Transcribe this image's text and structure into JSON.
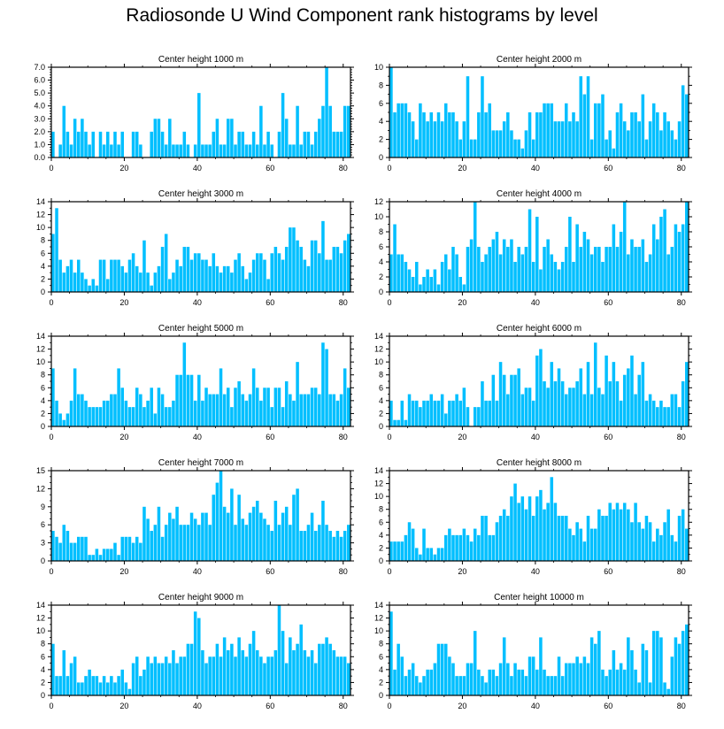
{
  "title": "Radiosonde U Wind Component rank histograms by level",
  "bar_color": "#00bfff",
  "axis_color": "#000000",
  "chart_data": [
    {
      "type": "bar",
      "title": "Center height 1000 m",
      "ylim": [
        0,
        7
      ],
      "yticks": [
        "0.0",
        "1.0",
        "2.0",
        "3.0",
        "4.0",
        "5.0",
        "6.0",
        "7.0"
      ],
      "xlim": [
        0,
        82
      ],
      "xticks": [
        "0",
        "20",
        "40",
        "60",
        "80"
      ],
      "values": [
        2,
        0,
        1,
        4,
        2,
        1,
        3,
        2,
        3,
        2,
        1,
        2,
        0,
        2,
        1,
        2,
        1,
        2,
        1,
        2,
        0,
        0,
        2,
        2,
        1,
        0,
        0,
        2,
        3,
        3,
        2,
        1,
        3,
        1,
        1,
        1,
        2,
        1,
        0,
        1,
        5,
        1,
        1,
        1,
        2,
        3,
        1,
        1,
        3,
        3,
        1,
        2,
        2,
        1,
        1,
        2,
        1,
        4,
        1,
        2,
        1,
        0,
        2,
        5,
        3,
        1,
        1,
        4,
        1,
        2,
        2,
        1,
        2,
        3,
        4,
        7,
        4,
        2,
        2,
        2,
        4,
        4
      ]
    },
    {
      "type": "bar",
      "title": "Center height 2000 m",
      "ylim": [
        0,
        10
      ],
      "yticks": [
        "0",
        "2",
        "4",
        "6",
        "8",
        "10"
      ],
      "xlim": [
        0,
        82
      ],
      "xticks": [
        "0",
        "20",
        "40",
        "60",
        "80"
      ],
      "values": [
        10,
        5,
        6,
        6,
        6,
        5,
        4,
        2,
        6,
        5,
        4,
        5,
        4,
        5,
        4,
        6,
        5,
        5,
        4,
        2,
        4,
        9,
        2,
        2,
        5,
        9,
        5,
        6,
        3,
        3,
        3,
        4,
        5,
        3,
        2,
        2,
        1,
        3,
        5,
        2,
        5,
        5,
        6,
        6,
        6,
        4,
        4,
        4,
        6,
        4,
        5,
        4,
        9,
        7,
        9,
        2,
        6,
        6,
        7,
        2,
        3,
        1,
        5,
        6,
        4,
        3,
        5,
        5,
        4,
        7,
        2,
        4,
        6,
        5,
        3,
        5,
        4,
        3,
        2,
        4,
        8,
        7
      ]
    },
    {
      "type": "bar",
      "title": "Center height 3000 m",
      "ylim": [
        0,
        14
      ],
      "yticks": [
        "0",
        "2",
        "4",
        "6",
        "8",
        "10",
        "12",
        "14"
      ],
      "xlim": [
        0,
        82
      ],
      "xticks": [
        "0",
        "20",
        "40",
        "60",
        "80"
      ],
      "values": [
        9,
        13,
        5,
        3,
        4,
        5,
        3,
        5,
        3,
        2,
        1,
        2,
        1,
        5,
        5,
        2,
        5,
        5,
        5,
        4,
        3,
        5,
        6,
        4,
        3,
        8,
        3,
        1,
        3,
        4,
        7,
        9,
        2,
        3,
        5,
        4,
        7,
        7,
        5,
        6,
        6,
        5,
        5,
        4,
        6,
        4,
        3,
        4,
        4,
        3,
        5,
        6,
        4,
        2,
        3,
        5,
        6,
        6,
        5,
        2,
        6,
        7,
        6,
        5,
        7,
        10,
        10,
        8,
        7,
        5,
        4,
        8,
        8,
        6,
        11,
        5,
        5,
        7,
        7,
        6,
        8,
        9
      ]
    },
    {
      "type": "bar",
      "title": "Center height 4000 m",
      "ylim": [
        0,
        12
      ],
      "yticks": [
        "0",
        "2",
        "4",
        "6",
        "8",
        "10",
        "12"
      ],
      "xlim": [
        0,
        82
      ],
      "xticks": [
        "0",
        "20",
        "40",
        "60",
        "80"
      ],
      "values": [
        5,
        9,
        5,
        5,
        4,
        3,
        2,
        4,
        1,
        2,
        3,
        2,
        3,
        1,
        4,
        5,
        3,
        6,
        5,
        2,
        1,
        6,
        7,
        12,
        6,
        4,
        5,
        6,
        7,
        8,
        5,
        7,
        6,
        7,
        4,
        6,
        5,
        6,
        11,
        4,
        10,
        3,
        6,
        7,
        5,
        4,
        3,
        4,
        6,
        10,
        4,
        9,
        6,
        8,
        7,
        5,
        6,
        6,
        4,
        6,
        6,
        9,
        6,
        8,
        12,
        5,
        7,
        6,
        6,
        7,
        4,
        5,
        9,
        7,
        10,
        11,
        5,
        6,
        9,
        8,
        9,
        12
      ]
    },
    {
      "type": "bar",
      "title": "Center height 5000 m",
      "ylim": [
        0,
        14
      ],
      "yticks": [
        "0",
        "2",
        "4",
        "6",
        "8",
        "10",
        "12",
        "14"
      ],
      "xlim": [
        0,
        82
      ],
      "xticks": [
        "0",
        "20",
        "40",
        "60",
        "80"
      ],
      "values": [
        9,
        4,
        2,
        1,
        2,
        4,
        9,
        5,
        5,
        4,
        3,
        3,
        3,
        3,
        4,
        4,
        5,
        5,
        9,
        6,
        4,
        3,
        3,
        6,
        5,
        3,
        4,
        6,
        2,
        6,
        5,
        3,
        3,
        4,
        8,
        8,
        13,
        8,
        8,
        4,
        8,
        4,
        6,
        5,
        5,
        5,
        9,
        5,
        6,
        3,
        6,
        7,
        5,
        4,
        5,
        9,
        6,
        4,
        6,
        6,
        3,
        6,
        6,
        3,
        7,
        5,
        4,
        10,
        5,
        5,
        5,
        6,
        6,
        5,
        13,
        12,
        5,
        5,
        4,
        5,
        9,
        6
      ]
    },
    {
      "type": "bar",
      "title": "Center height 6000 m",
      "ylim": [
        0,
        14
      ],
      "yticks": [
        "0",
        "2",
        "4",
        "6",
        "8",
        "10",
        "12",
        "14"
      ],
      "xlim": [
        0,
        82
      ],
      "xticks": [
        "0",
        "20",
        "40",
        "60",
        "80"
      ],
      "values": [
        4,
        1,
        1,
        4,
        1,
        5,
        4,
        4,
        3,
        4,
        4,
        5,
        4,
        4,
        5,
        2,
        4,
        4,
        5,
        4,
        6,
        3,
        0,
        3,
        3,
        7,
        4,
        4,
        8,
        4,
        10,
        8,
        5,
        8,
        8,
        9,
        5,
        6,
        6,
        4,
        11,
        12,
        7,
        6,
        10,
        7,
        9,
        7,
        5,
        6,
        6,
        7,
        9,
        5,
        10,
        5,
        13,
        6,
        5,
        11,
        7,
        10,
        7,
        4,
        8,
        9,
        11,
        5,
        8,
        10,
        4,
        5,
        4,
        3,
        4,
        3,
        3,
        5,
        5,
        3,
        7,
        10
      ]
    },
    {
      "type": "bar",
      "title": "Center height 7000 m",
      "ylim": [
        0,
        15
      ],
      "yticks": [
        "0",
        "3",
        "6",
        "9",
        "12",
        "15"
      ],
      "xlim": [
        0,
        82
      ],
      "xticks": [
        "0",
        "20",
        "40",
        "60",
        "80"
      ],
      "values": [
        5,
        4,
        3,
        6,
        5,
        3,
        3,
        4,
        4,
        4,
        1,
        1,
        2,
        1,
        2,
        2,
        2,
        3,
        1,
        4,
        4,
        4,
        3,
        4,
        3,
        9,
        7,
        5,
        6,
        9,
        4,
        6,
        8,
        7,
        9,
        6,
        6,
        6,
        8,
        7,
        6,
        8,
        8,
        6,
        11,
        13,
        15,
        9,
        8,
        12,
        6,
        11,
        7,
        6,
        8,
        9,
        10,
        8,
        7,
        6,
        5,
        10,
        6,
        8,
        9,
        6,
        11,
        12,
        5,
        5,
        6,
        8,
        5,
        6,
        10,
        6,
        5,
        4,
        5,
        4,
        5,
        6
      ]
    },
    {
      "type": "bar",
      "title": "Center height 8000 m",
      "ylim": [
        0,
        14
      ],
      "yticks": [
        "0",
        "2",
        "4",
        "6",
        "8",
        "10",
        "12",
        "14"
      ],
      "xlim": [
        0,
        82
      ],
      "xticks": [
        "0",
        "20",
        "40",
        "60",
        "80"
      ],
      "values": [
        3,
        3,
        3,
        3,
        4,
        6,
        5,
        2,
        1,
        5,
        2,
        2,
        1,
        2,
        2,
        4,
        5,
        4,
        4,
        4,
        5,
        4,
        3,
        5,
        4,
        7,
        7,
        4,
        4,
        6,
        7,
        8,
        7,
        10,
        12,
        9,
        10,
        8,
        10,
        7,
        10,
        11,
        8,
        9,
        13,
        9,
        7,
        7,
        7,
        5,
        4,
        6,
        5,
        3,
        7,
        5,
        5,
        8,
        7,
        7,
        9,
        8,
        9,
        8,
        9,
        8,
        6,
        9,
        6,
        5,
        7,
        6,
        3,
        5,
        4,
        6,
        8,
        4,
        3,
        7,
        8,
        5
      ]
    },
    {
      "type": "bar",
      "title": "Center height 9000 m",
      "ylim": [
        0,
        14
      ],
      "yticks": [
        "0",
        "2",
        "4",
        "6",
        "8",
        "10",
        "12",
        "14"
      ],
      "xlim": [
        0,
        82
      ],
      "xticks": [
        "0",
        "20",
        "40",
        "60",
        "80"
      ],
      "values": [
        8,
        3,
        3,
        7,
        3,
        5,
        6,
        2,
        2,
        3,
        4,
        3,
        3,
        2,
        3,
        2,
        3,
        2,
        3,
        4,
        2,
        1,
        5,
        6,
        3,
        4,
        6,
        5,
        6,
        5,
        5,
        6,
        5,
        7,
        5,
        6,
        6,
        8,
        8,
        13,
        12,
        7,
        5,
        6,
        6,
        8,
        6,
        9,
        7,
        8,
        6,
        9,
        7,
        6,
        8,
        10,
        7,
        6,
        5,
        6,
        6,
        7,
        14,
        10,
        5,
        9,
        7,
        8,
        11,
        7,
        6,
        7,
        5,
        8,
        8,
        9,
        8,
        7,
        6,
        6,
        6,
        5
      ]
    },
    {
      "type": "bar",
      "title": "Center height 10000 m",
      "ylim": [
        0,
        14
      ],
      "yticks": [
        "0",
        "2",
        "4",
        "6",
        "8",
        "10",
        "12",
        "14"
      ],
      "xlim": [
        0,
        82
      ],
      "xticks": [
        "0",
        "20",
        "40",
        "60",
        "80"
      ],
      "values": [
        13,
        4,
        8,
        6,
        3,
        4,
        5,
        3,
        2,
        3,
        4,
        4,
        5,
        8,
        8,
        8,
        6,
        5,
        3,
        3,
        3,
        5,
        5,
        10,
        4,
        3,
        2,
        4,
        4,
        3,
        5,
        9,
        5,
        3,
        5,
        4,
        4,
        3,
        6,
        6,
        4,
        9,
        4,
        3,
        3,
        3,
        6,
        3,
        5,
        5,
        5,
        6,
        5,
        6,
        5,
        9,
        8,
        10,
        4,
        3,
        4,
        7,
        4,
        5,
        4,
        9,
        7,
        4,
        2,
        8,
        7,
        2,
        10,
        10,
        9,
        2,
        1,
        6,
        9,
        8,
        10,
        11
      ]
    }
  ]
}
